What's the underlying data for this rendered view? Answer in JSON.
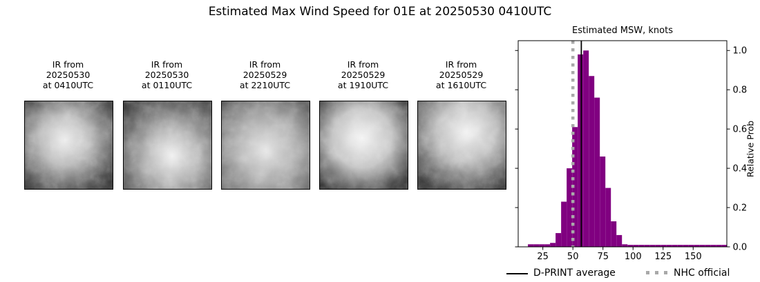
{
  "figure": {
    "title": "Estimated Max Wind Speed for 01E at 20250530 0410UTC"
  },
  "ir_panels": [
    {
      "label_lines": [
        "IR from",
        "20250530",
        "at 0410UTC"
      ]
    },
    {
      "label_lines": [
        "IR from",
        "20250530",
        "at 0110UTC"
      ]
    },
    {
      "label_lines": [
        "IR from",
        "20250529",
        "at 2210UTC"
      ]
    },
    {
      "label_lines": [
        "IR from",
        "20250529",
        "at 1910UTC"
      ]
    },
    {
      "label_lines": [
        "IR from",
        "20250529",
        "at 1610UTC"
      ]
    }
  ],
  "chart_data": {
    "type": "bar",
    "title": "Estimated MSW, knots",
    "xlabel": "",
    "ylabel": "Relative Prob",
    "bar_color": "#800080",
    "grid": false,
    "xlim": [
      4.5,
      178
    ],
    "ylim": [
      0,
      1.05
    ],
    "xticks": [
      25,
      50,
      75,
      100,
      125,
      150
    ],
    "yticks": [
      0.0,
      0.2,
      0.4,
      0.6,
      0.8,
      1.0
    ],
    "bin_width": 4.6,
    "bin_starts": [
      12.6,
      17.2,
      21.8,
      26.4,
      31.0,
      35.6,
      40.2,
      44.8,
      49.4,
      54.0,
      58.6,
      63.2,
      67.8,
      72.4,
      77.0,
      81.6,
      86.2,
      90.8,
      95.4,
      100.0,
      104.6,
      109.2,
      113.8,
      118.4,
      123.0,
      127.6,
      132.2,
      136.8,
      141.4,
      146.0,
      150.6,
      155.2,
      159.8,
      164.4,
      169.0,
      173.6
    ],
    "heights": [
      0.013,
      0.013,
      0.013,
      0.013,
      0.02,
      0.07,
      0.23,
      0.4,
      0.61,
      0.98,
      1.0,
      0.87,
      0.76,
      0.46,
      0.3,
      0.13,
      0.06,
      0.013,
      0.01,
      0.01,
      0.01,
      0.01,
      0.01,
      0.01,
      0.01,
      0.01,
      0.01,
      0.01,
      0.01,
      0.01,
      0.01,
      0.01,
      0.01,
      0.01,
      0.01,
      0.01
    ],
    "lines": [
      {
        "name": "D-PRINT average",
        "value": 57,
        "style": "solid",
        "color": "#000000"
      },
      {
        "name": "NHC official",
        "value": 50,
        "style": "dotted",
        "color": "#a9a9a9"
      }
    ],
    "legend_position": "bottom"
  }
}
